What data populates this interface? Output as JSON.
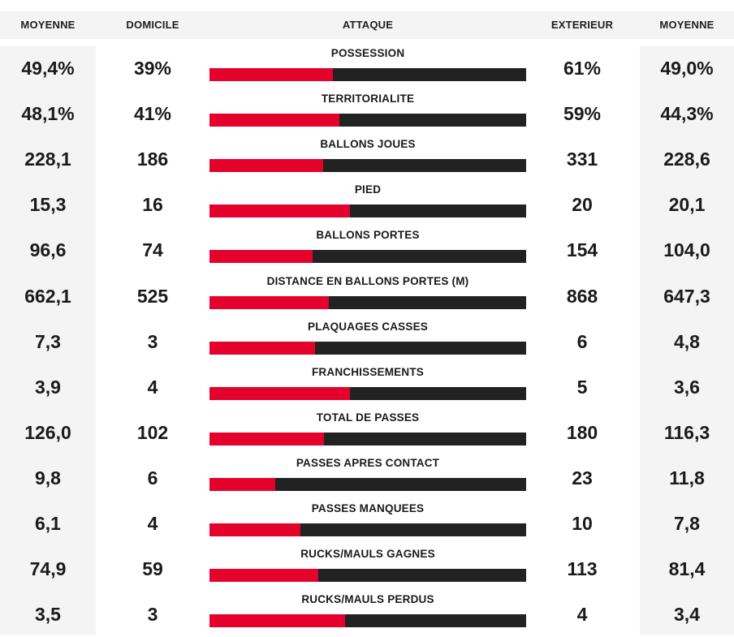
{
  "colors": {
    "home_bar": "#e4022d",
    "away_bar": "#222222",
    "avg_bg": "#f4f4f4"
  },
  "header": {
    "avg_home": "MOYENNE",
    "home": "DOMICILE",
    "category": "ATTAQUE",
    "away": "EXTERIEUR",
    "avg_away": "MOYENNE"
  },
  "rows": [
    {
      "label": "POSSESSION",
      "avg_home": "49,4%",
      "home": "39%",
      "away": "61%",
      "avg_away": "49,0%",
      "home_share": 0.39
    },
    {
      "label": "TERRITORIALITE",
      "avg_home": "48,1%",
      "home": "41%",
      "away": "59%",
      "avg_away": "44,3%",
      "home_share": 0.41
    },
    {
      "label": "BALLONS JOUES",
      "avg_home": "228,1",
      "home": "186",
      "away": "331",
      "avg_away": "228,6",
      "home_share": 0.36
    },
    {
      "label": "PIED",
      "avg_home": "15,3",
      "home": "16",
      "away": "20",
      "avg_away": "20,1",
      "home_share": 0.444
    },
    {
      "label": "BALLONS PORTES",
      "avg_home": "96,6",
      "home": "74",
      "away": "154",
      "avg_away": "104,0",
      "home_share": 0.325
    },
    {
      "label": "DISTANCE EN BALLONS PORTES (M)",
      "avg_home": "662,1",
      "home": "525",
      "away": "868",
      "avg_away": "647,3",
      "home_share": 0.377
    },
    {
      "label": "PLAQUAGES CASSES",
      "avg_home": "7,3",
      "home": "3",
      "away": "6",
      "avg_away": "4,8",
      "home_share": 0.333
    },
    {
      "label": "FRANCHISSEMENTS",
      "avg_home": "3,9",
      "home": "4",
      "away": "5",
      "avg_away": "3,6",
      "home_share": 0.444
    },
    {
      "label": "TOTAL DE PASSES",
      "avg_home": "126,0",
      "home": "102",
      "away": "180",
      "avg_away": "116,3",
      "home_share": 0.362
    },
    {
      "label": "PASSES APRES CONTACT",
      "avg_home": "9,8",
      "home": "6",
      "away": "23",
      "avg_away": "11,8",
      "home_share": 0.207
    },
    {
      "label": "PASSES MANQUEES",
      "avg_home": "6,1",
      "home": "4",
      "away": "10",
      "avg_away": "7,8",
      "home_share": 0.286
    },
    {
      "label": "RUCKS/MAULS GAGNES",
      "avg_home": "74,9",
      "home": "59",
      "away": "113",
      "avg_away": "81,4",
      "home_share": 0.343
    },
    {
      "label": "RUCKS/MAULS PERDUS",
      "avg_home": "3,5",
      "home": "3",
      "away": "4",
      "avg_away": "3,4",
      "home_share": 0.429
    }
  ]
}
